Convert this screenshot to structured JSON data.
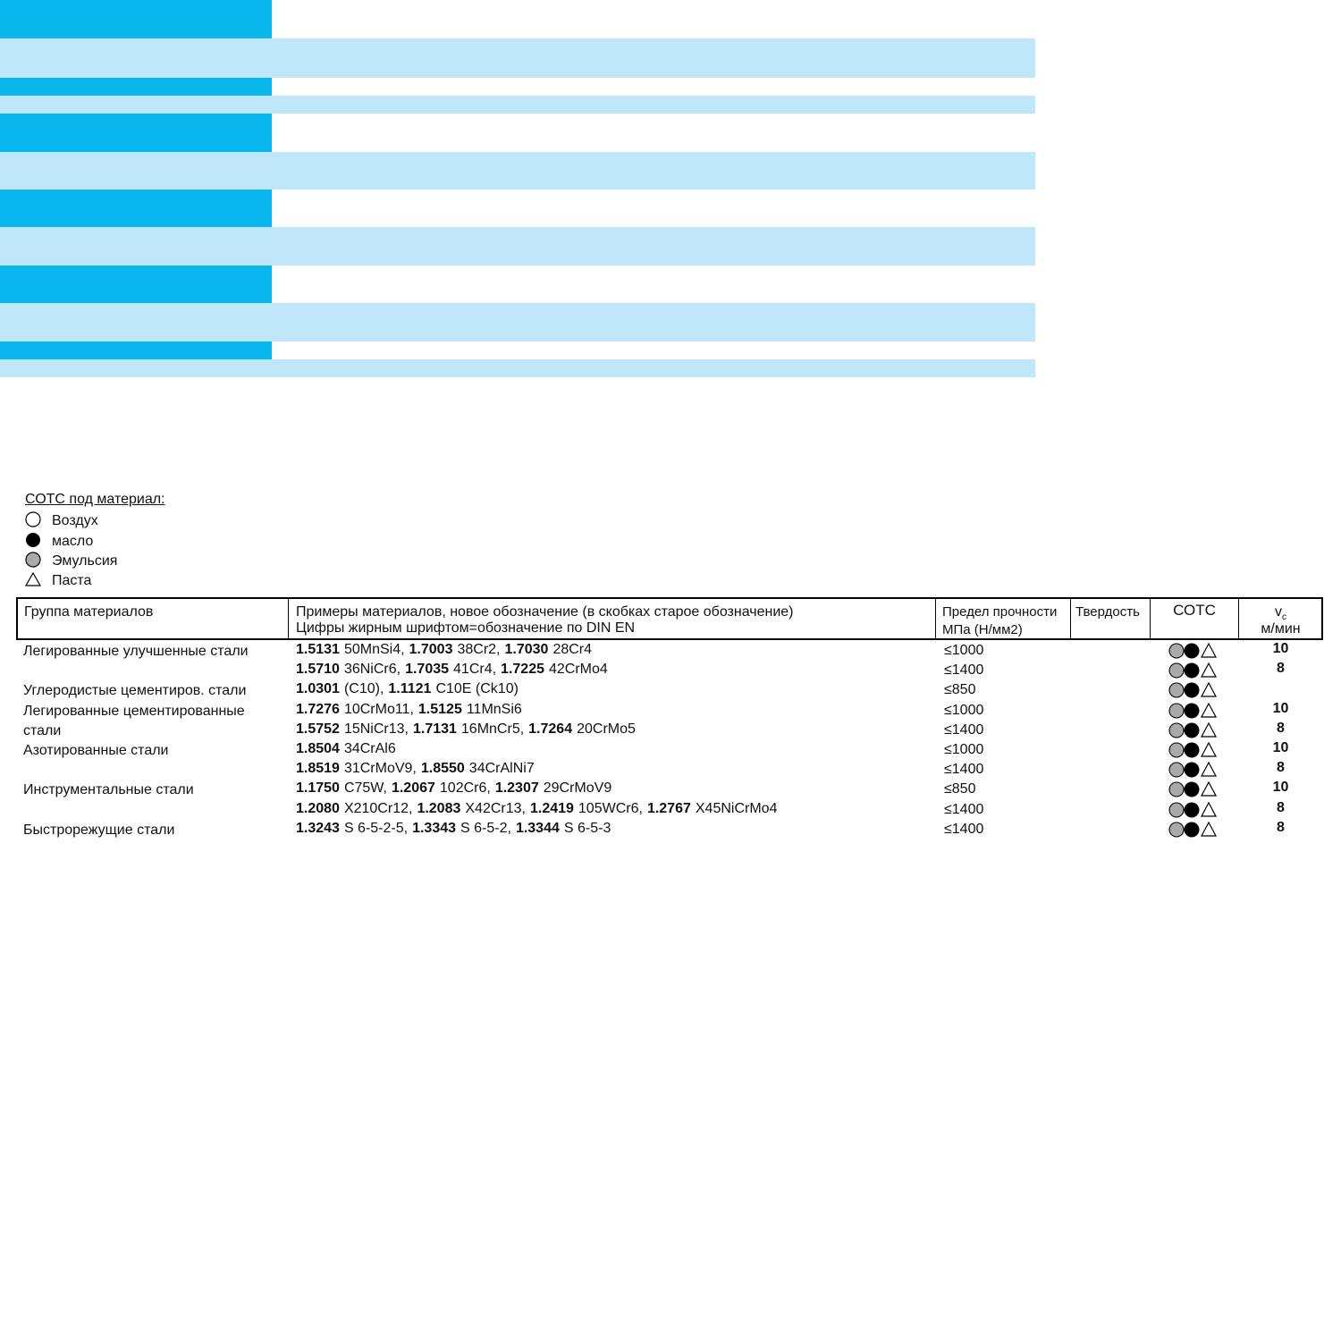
{
  "legend": {
    "title": "СОТС под материал:",
    "items": [
      "Воздух",
      "масло",
      "Эмульсия",
      "Паста"
    ]
  },
  "table": {
    "header": {
      "group": "Группа материалов",
      "examples": [
        "Примеры материалов, новое обозначение (в скобках старое обозначение)",
        "Цифры жирным шрифтом=обозначение по DIN EN"
      ],
      "strength": [
        "Предел прочности",
        "МПа (Н/мм2)"
      ],
      "hardness": "Твердость",
      "coolant": "СОТС",
      "speed": {
        "symbol": "v",
        "subscript": "c",
        "unit": "м/мин"
      }
    },
    "groups": [
      {
        "name": "Легированные улучшенные стали",
        "rows": [
          {
            "materials": [
              {
                "code": "1.5131",
                "name": "50MnSi4,"
              },
              {
                "code": "1.7003",
                "name": "38Cr2,"
              },
              {
                "code": "1.7030",
                "name": "28Cr4"
              }
            ],
            "strength": "≤1000",
            "vc": 10
          },
          {
            "materials": [
              {
                "code": "1.5710",
                "name": "36NiCr6,"
              },
              {
                "code": "1.7035",
                "name": "41Cr4,"
              },
              {
                "code": "1.7225",
                "name": "42CrMo4"
              }
            ],
            "strength": "≤1400",
            "vc": 8
          }
        ]
      },
      {
        "name": "Углеродистые цементиров. стали",
        "rows": [
          {
            "materials": [
              {
                "code": "1.0301",
                "name": "(C10),"
              },
              {
                "code": "1.1121",
                "name": "C10E (Ck10)"
              }
            ],
            "strength": "≤850"
          }
        ]
      },
      {
        "name": "Легированные цементированные стали",
        "rows": [
          {
            "materials": [
              {
                "code": "1.7276",
                "name": "10CrMo11,"
              },
              {
                "code": "1.5125",
                "name": "11MnSi6"
              }
            ],
            "strength": "≤1000",
            "vc": 10
          },
          {
            "materials": [
              {
                "code": "1.5752",
                "name": "15NiCr13,"
              },
              {
                "code": "1.7131",
                "name": "16MnCr5,"
              },
              {
                "code": "1.7264",
                "name": "20CrMo5"
              }
            ],
            "strength": "≤1400",
            "vc": 8
          }
        ]
      },
      {
        "name": "Азотированные стали",
        "rows": [
          {
            "materials": [
              {
                "code": "1.8504",
                "name": "34CrAl6"
              }
            ],
            "strength": "≤1000",
            "vc": 10
          },
          {
            "materials": [
              {
                "code": "1.8519",
                "name": "31CrMoV9,"
              },
              {
                "code": "1.8550",
                "name": "34CrAlNi7"
              }
            ],
            "strength": "≤1400",
            "vc": 8
          }
        ]
      },
      {
        "name": "Инструментальные стали",
        "rows": [
          {
            "materials": [
              {
                "code": "1.1750",
                "name": "C75W,"
              },
              {
                "code": "1.2067",
                "name": "102Cr6,"
              },
              {
                "code": "1.2307",
                "name": "29CrMoV9"
              }
            ],
            "strength": "≤850",
            "vc": 10
          },
          {
            "materials": [
              {
                "code": "1.2080",
                "name": "X210Cr12,"
              },
              {
                "code": "1.2083",
                "name": "X42Cr13,"
              },
              {
                "code": "1.2419",
                "name": "105WCr6,"
              },
              {
                "code": "1.2767",
                "name": "X45NiCrMo4"
              }
            ],
            "strength": "≤1400",
            "vc": 8
          }
        ]
      },
      {
        "name": "Быстрорежущие стали",
        "rows": [
          {
            "materials": [
              {
                "code": "1.3243",
                "name": "S 6-5-2-5,"
              },
              {
                "code": "1.3343",
                "name": "S 6-5-2,"
              },
              {
                "code": "1.3344",
                "name": "S 6-5-3"
              }
            ],
            "strength": "≤1400",
            "vc": 8
          }
        ]
      }
    ]
  }
}
